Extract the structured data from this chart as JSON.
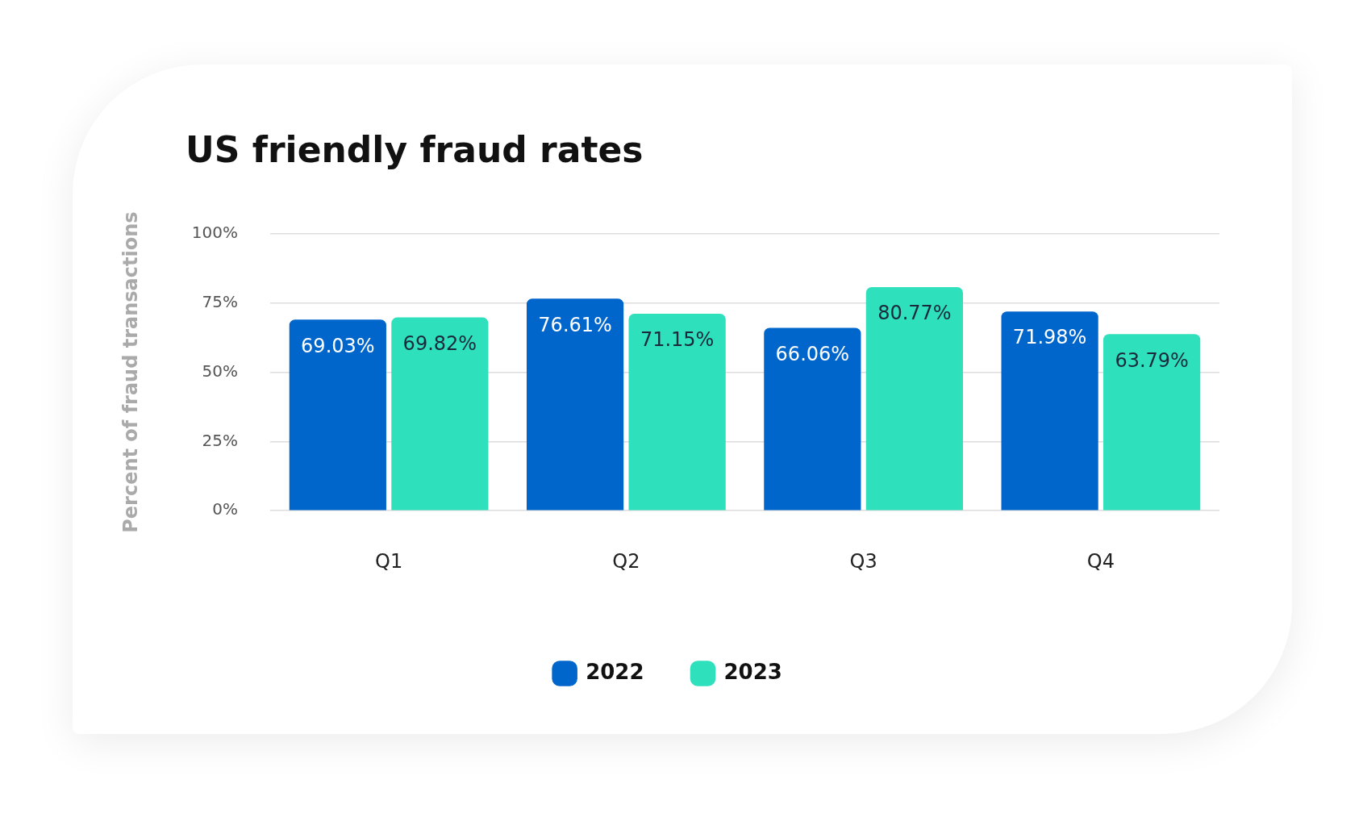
{
  "chart_data": {
    "type": "bar",
    "title": "US friendly fraud rates",
    "ylabel": "Percent of fraud transactions",
    "categories": [
      "Q1",
      "Q2",
      "Q3",
      "Q4"
    ],
    "series": [
      {
        "name": "2022",
        "color": "#0066cc",
        "values": [
          69.03,
          76.61,
          66.06,
          71.98
        ],
        "value_labels": [
          "69.03%",
          "76.61%",
          "66.06%",
          "71.98%"
        ]
      },
      {
        "name": "2023",
        "color": "#2ee0bc",
        "values": [
          69.82,
          71.15,
          80.77,
          63.79
        ],
        "value_labels": [
          "69.82%",
          "71.15%",
          "80.77%",
          "63.79%"
        ]
      }
    ],
    "ylim": [
      0,
      100
    ],
    "yticks": [
      {
        "value": 0,
        "label": "0%"
      },
      {
        "value": 25,
        "label": "25%"
      },
      {
        "value": 50,
        "label": "50%"
      },
      {
        "value": 75,
        "label": "75%"
      },
      {
        "value": 100,
        "label": "100%"
      }
    ],
    "grid": "y",
    "legend": "bottom"
  }
}
